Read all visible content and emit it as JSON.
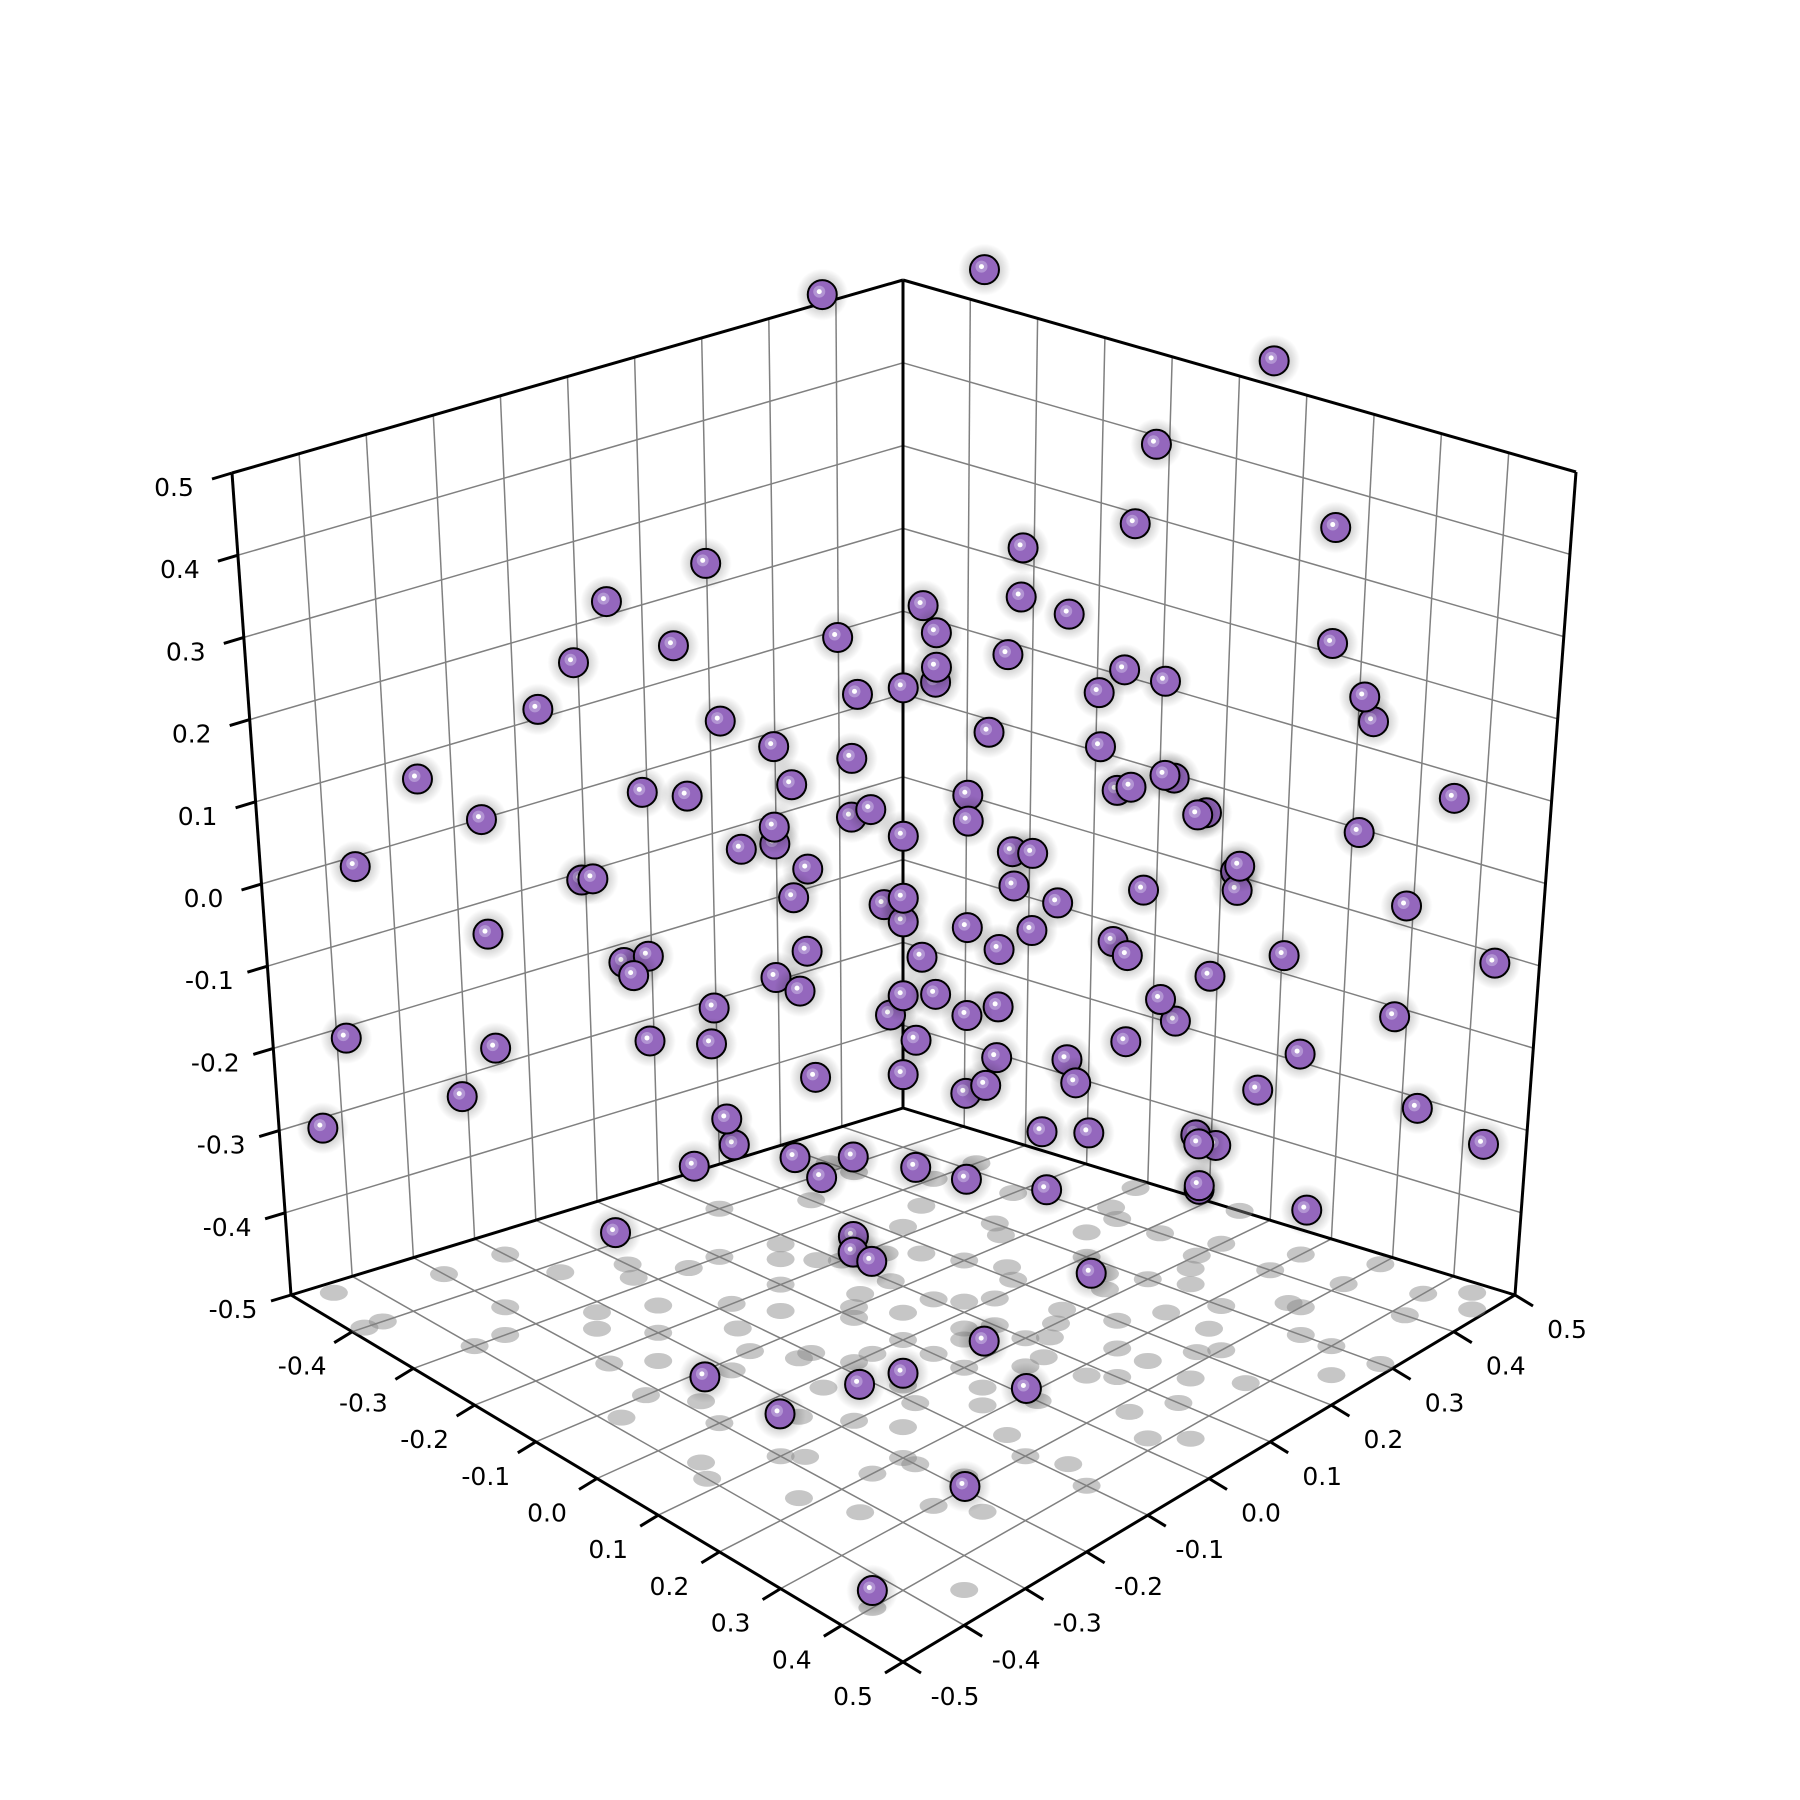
{
  "chart_data": {
    "type": "scatter3d",
    "title": "",
    "xlabel": "",
    "ylabel": "",
    "zlabel": "",
    "xlim": [
      -0.5,
      0.5
    ],
    "ylim": [
      -0.5,
      0.5
    ],
    "zlim": [
      -0.5,
      0.5
    ],
    "x_ticks": [
      "-0.4",
      "-0.3",
      "-0.2",
      "-0.1",
      "0.0",
      "0.1",
      "0.2",
      "0.3",
      "0.4",
      "0.5"
    ],
    "y_ticks": [
      "-0.5",
      "-0.4",
      "-0.3",
      "-0.2",
      "-0.1",
      "0.0",
      "0.1",
      "0.2",
      "0.3",
      "0.4",
      "0.5"
    ],
    "z_ticks": [
      "-0.5",
      "-0.4",
      "-0.3",
      "-0.2",
      "-0.1",
      "0.0",
      "0.1",
      "0.2",
      "0.3",
      "0.4",
      "0.5"
    ],
    "grid": true,
    "marker_color": "#9467bd",
    "marker_edge_color": "#000000",
    "shadow_color": "#808080",
    "shadow_plane": "floor (z = -0.5)",
    "points": [
      [
        -0.42,
        0.3,
        0.55
      ],
      [
        -0.3,
        0.42,
        0.58
      ],
      [
        0.05,
        0.5,
        0.53
      ],
      [
        -0.1,
        0.48,
        0.4
      ],
      [
        0.2,
        0.45,
        0.38
      ],
      [
        -0.35,
        -0.1,
        0.3
      ],
      [
        -0.4,
        0.1,
        0.28
      ],
      [
        -0.05,
        0.4,
        0.34
      ],
      [
        0.3,
        0.35,
        0.3
      ],
      [
        0.4,
        0.3,
        0.28
      ],
      [
        -0.45,
        -0.3,
        0.1
      ],
      [
        -0.4,
        -0.45,
        0.05
      ],
      [
        -0.3,
        -0.35,
        0.12
      ],
      [
        -0.2,
        0.1,
        0.25
      ],
      [
        0.1,
        0.3,
        0.22
      ],
      [
        0.35,
        0.1,
        0.2
      ],
      [
        0.45,
        0.25,
        0.15
      ],
      [
        0.3,
        0.42,
        0.18
      ],
      [
        0.4,
        0.45,
        0.1
      ],
      [
        0.48,
        0.3,
        0.05
      ],
      [
        -0.48,
        -0.45,
        -0.3
      ],
      [
        -0.4,
        -0.48,
        -0.15
      ],
      [
        -0.3,
        -0.4,
        -0.2
      ],
      [
        -0.45,
        -0.2,
        -0.25
      ],
      [
        -0.35,
        -0.3,
        -0.05
      ],
      [
        0.45,
        0.48,
        -0.1
      ],
      [
        0.3,
        0.48,
        -0.2
      ],
      [
        0.42,
        0.4,
        -0.25
      ],
      [
        0.35,
        0.3,
        -0.35
      ],
      [
        0.48,
        0.45,
        -0.3
      ],
      [
        0.2,
        -0.2,
        -0.4
      ],
      [
        0.1,
        -0.3,
        -0.45
      ],
      [
        0.3,
        -0.1,
        -0.42
      ],
      [
        0.45,
        -0.35,
        -0.38
      ],
      [
        0.4,
        -0.45,
        -0.48
      ],
      [
        -0.15,
        -0.25,
        0.18
      ],
      [
        -0.1,
        -0.15,
        0.1
      ],
      [
        0.0,
        -0.05,
        0.15
      ],
      [
        0.05,
        0.05,
        0.12
      ],
      [
        0.1,
        0.1,
        0.08
      ],
      [
        -0.2,
        0.0,
        0.05
      ],
      [
        -0.25,
        0.05,
        0.0
      ],
      [
        -0.05,
        -0.1,
        -0.02
      ],
      [
        0.0,
        0.0,
        0.0
      ],
      [
        0.05,
        0.1,
        -0.05
      ],
      [
        0.15,
        0.05,
        0.02
      ],
      [
        0.2,
        0.15,
        -0.03
      ],
      [
        -0.1,
        0.2,
        0.06
      ],
      [
        0.08,
        0.25,
        0.1
      ],
      [
        0.15,
        0.2,
        0.14
      ],
      [
        -0.15,
        -0.05,
        -0.1
      ],
      [
        -0.05,
        0.05,
        -0.12
      ],
      [
        0.05,
        -0.05,
        -0.15
      ],
      [
        0.1,
        0.0,
        -0.08
      ],
      [
        0.18,
        -0.05,
        -0.12
      ],
      [
        -0.25,
        -0.15,
        -0.08
      ],
      [
        -0.2,
        -0.2,
        -0.15
      ],
      [
        -0.08,
        -0.2,
        -0.2
      ],
      [
        0.02,
        -0.15,
        -0.25
      ],
      [
        0.12,
        -0.1,
        -0.22
      ],
      [
        0.22,
        0.0,
        -0.18
      ],
      [
        0.25,
        0.1,
        -0.1
      ],
      [
        0.28,
        0.2,
        -0.05
      ],
      [
        0.18,
        0.25,
        -0.15
      ],
      [
        0.08,
        0.18,
        -0.2
      ],
      [
        -0.02,
        0.12,
        -0.25
      ],
      [
        -0.12,
        0.1,
        -0.18
      ],
      [
        -0.18,
        0.15,
        -0.08
      ],
      [
        -0.28,
        0.08,
        0.1
      ],
      [
        -0.22,
        0.22,
        0.15
      ],
      [
        -0.12,
        0.28,
        0.2
      ],
      [
        0.0,
        0.3,
        0.18
      ],
      [
        0.12,
        0.35,
        0.05
      ],
      [
        0.22,
        0.3,
        0.0
      ],
      [
        0.3,
        0.22,
        0.08
      ],
      [
        0.32,
        0.05,
        0.12
      ],
      [
        0.25,
        -0.08,
        0.15
      ],
      [
        0.15,
        -0.15,
        0.2
      ],
      [
        0.05,
        -0.22,
        0.25
      ],
      [
        -0.05,
        -0.28,
        0.22
      ],
      [
        -0.18,
        -0.3,
        0.08
      ],
      [
        -0.28,
        -0.22,
        0.02
      ],
      [
        -0.32,
        -0.12,
        -0.12
      ],
      [
        -0.3,
        0.0,
        -0.2
      ],
      [
        -0.22,
        0.08,
        -0.28
      ],
      [
        -0.1,
        0.02,
        -0.32
      ],
      [
        0.0,
        -0.08,
        -0.35
      ],
      [
        0.1,
        -0.18,
        -0.3
      ],
      [
        0.2,
        -0.25,
        -0.25
      ],
      [
        0.28,
        -0.18,
        -0.15
      ],
      [
        0.35,
        -0.08,
        -0.05
      ],
      [
        0.38,
        0.02,
        0.02
      ],
      [
        0.32,
        0.15,
        -0.22
      ],
      [
        0.25,
        0.25,
        -0.28
      ],
      [
        0.15,
        0.32,
        -0.32
      ],
      [
        0.05,
        0.28,
        -0.1
      ],
      [
        -0.05,
        0.22,
        0.0
      ],
      [
        -0.15,
        0.18,
        0.28
      ],
      [
        -0.05,
        0.1,
        0.3
      ],
      [
        0.05,
        0.0,
        0.32
      ],
      [
        0.15,
        -0.02,
        0.28
      ],
      [
        0.22,
        0.08,
        0.25
      ],
      [
        0.1,
        0.15,
        0.35
      ],
      [
        -0.02,
        0.2,
        0.38
      ],
      [
        -0.12,
        0.05,
        0.22
      ],
      [
        -0.2,
        -0.08,
        0.2
      ],
      [
        -0.1,
        -0.32,
        0.0
      ],
      [
        0.0,
        -0.3,
        -0.05
      ],
      [
        0.12,
        -0.28,
        0.05
      ],
      [
        0.22,
        -0.2,
        0.0
      ],
      [
        0.3,
        -0.25,
        0.1
      ],
      [
        0.18,
        -0.35,
        -0.1
      ],
      [
        0.05,
        -0.38,
        -0.15
      ],
      [
        -0.08,
        -0.38,
        -0.28
      ],
      [
        0.08,
        -0.4,
        -0.38
      ],
      [
        0.25,
        -0.32,
        -0.35
      ],
      [
        0.35,
        -0.22,
        -0.3
      ],
      [
        0.4,
        -0.1,
        -0.25
      ],
      [
        0.42,
        0.05,
        -0.2
      ],
      [
        0.38,
        0.18,
        -0.15
      ],
      [
        -0.35,
        0.2,
        -0.1
      ],
      [
        -0.38,
        0.3,
        0.0
      ],
      [
        -0.3,
        0.35,
        0.1
      ],
      [
        -0.2,
        0.38,
        0.22
      ],
      [
        -0.08,
        0.42,
        0.15
      ],
      [
        0.02,
        0.4,
        0.05
      ],
      [
        0.1,
        0.42,
        -0.05
      ],
      [
        0.2,
        0.4,
        -0.12
      ],
      [
        0.28,
        0.35,
        -0.2
      ],
      [
        -0.25,
        0.28,
        -0.2
      ],
      [
        -0.15,
        0.3,
        -0.3
      ],
      [
        -0.05,
        0.35,
        -0.38
      ],
      [
        0.1,
        0.38,
        -0.42
      ],
      [
        -0.3,
        -0.05,
        0.25
      ],
      [
        -0.38,
        -0.18,
        0.18
      ],
      [
        -0.05,
        -0.12,
        0.05
      ],
      [
        0.03,
        0.07,
        -0.02
      ],
      [
        0.12,
        0.12,
        0.02
      ],
      [
        -0.08,
        0.0,
        0.1
      ],
      [
        0.08,
        -0.08,
        0.08
      ],
      [
        0.0,
        0.15,
        -0.15
      ],
      [
        -0.15,
        -0.12,
        -0.28
      ],
      [
        0.15,
        0.08,
        -0.3
      ],
      [
        0.25,
        0.15,
        0.2
      ],
      [
        -0.25,
        -0.25,
        0.3
      ]
    ]
  }
}
